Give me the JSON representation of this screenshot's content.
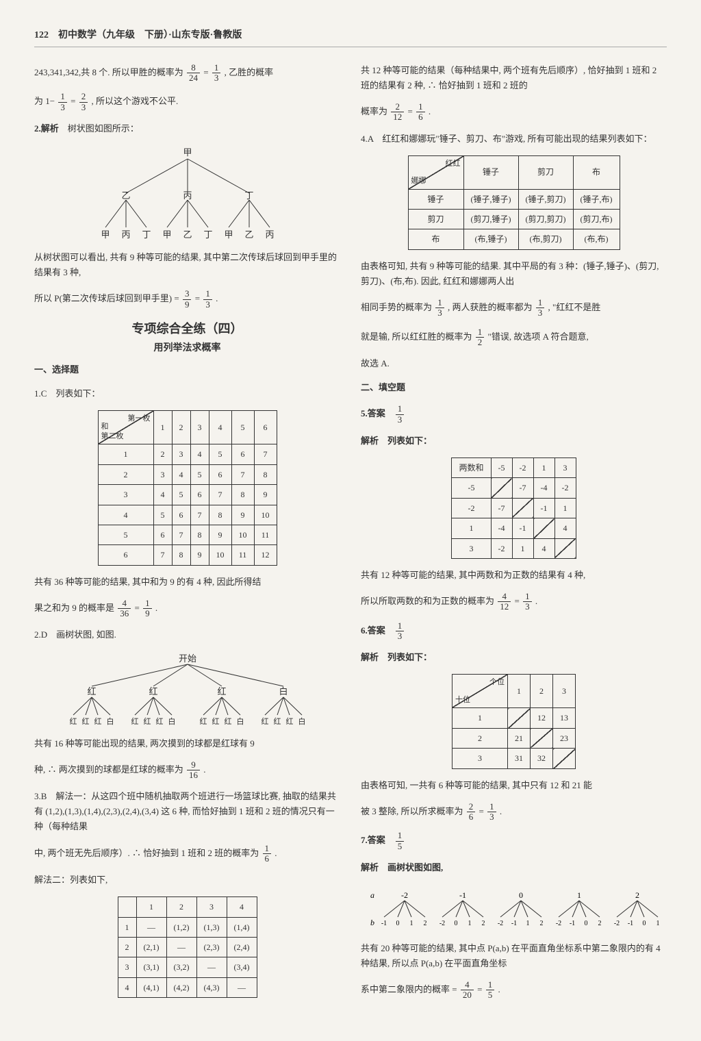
{
  "header": {
    "page_no": "122",
    "title": "初中数学（九年级　下册）·山东专版·鲁教版"
  },
  "left": {
    "p1_a": "243,341,342,共 8 个. 所以甲胜的概率为",
    "p1_frac1": {
      "n": "8",
      "d": "24"
    },
    "p1_eq": "=",
    "p1_frac2": {
      "n": "1",
      "d": "3"
    },
    "p1_b": ", 乙胜的概率",
    "p2_a": "为 1−",
    "p2_frac1": {
      "n": "1",
      "d": "3"
    },
    "p2_eq": "=",
    "p2_frac2": {
      "n": "2",
      "d": "3"
    },
    "p2_b": ", 所以这个游戏不公平.",
    "q2_label": "2.解析",
    "q2_text": "树状图如图所示：",
    "tree1": {
      "root": "甲",
      "mid": [
        "乙",
        "丙",
        "丁"
      ],
      "leaves": [
        [
          "甲",
          "丙",
          "丁"
        ],
        [
          "甲",
          "乙",
          "丁"
        ],
        [
          "甲",
          "乙",
          "丙"
        ]
      ],
      "colors": {
        "line": "#333"
      }
    },
    "tree1_after": "从树状图可以看出, 共有 9 种等可能的结果, 其中第二次传球后球回到甲手里的结果有 3 种,",
    "tree1_p": "所以 P(第二次传球后球回到甲手里) =",
    "tree1_f1": {
      "n": "3",
      "d": "9"
    },
    "tree1_eq": "=",
    "tree1_f2": {
      "n": "1",
      "d": "3"
    },
    "tree1_end": ".",
    "box_title": "专项综合全练（四）",
    "box_sub": "用列举法求概率",
    "sec1": "一、选择题",
    "q1c": "1.C　列表如下：",
    "table1": {
      "corner_top": "第一枚",
      "corner_mid": "和",
      "corner_bot": "第二枚",
      "cols": [
        "1",
        "2",
        "3",
        "4",
        "5",
        "6"
      ],
      "rows": [
        "1",
        "2",
        "3",
        "4",
        "5",
        "6"
      ],
      "cells": [
        [
          "2",
          "3",
          "4",
          "5",
          "6",
          "7"
        ],
        [
          "3",
          "4",
          "5",
          "6",
          "7",
          "8"
        ],
        [
          "4",
          "5",
          "6",
          "7",
          "8",
          "9"
        ],
        [
          "5",
          "6",
          "7",
          "8",
          "9",
          "10"
        ],
        [
          "6",
          "7",
          "8",
          "9",
          "10",
          "11"
        ],
        [
          "7",
          "8",
          "9",
          "10",
          "11",
          "12"
        ]
      ]
    },
    "t1_after_a": "共有 36 种等可能的结果, 其中和为 9 的有 4 种, 因此所得结",
    "t1_after_b": "果之和为 9 的概率是",
    "t1_f1": {
      "n": "4",
      "d": "36"
    },
    "t1_eq": "=",
    "t1_f2": {
      "n": "1",
      "d": "9"
    },
    "t1_end": ".",
    "q2d": "2.D　画树状图, 如图.",
    "tree2": {
      "root": "开始",
      "mid": [
        "红",
        "红",
        "红",
        "白"
      ],
      "leaves": [
        "红",
        "红",
        "红",
        "白"
      ],
      "colors": {
        "line": "#333"
      }
    },
    "tree2_after_a": "共有 16 种等可能出现的结果, 两次摸到的球都是红球有 9",
    "tree2_after_b": "种, ∴ 两次摸到的球都是红球的概率为",
    "tree2_f": {
      "n": "9",
      "d": "16"
    },
    "tree2_end": ".",
    "q3b": "3.B　解法一：从这四个班中随机抽取两个班进行一场篮球比赛, 抽取的结果共有 (1,2),(1,3),(1,4),(2,3),(2,4),(3,4) 这 6 种, 而恰好抽到 1 班和 2 班的情况只有一种（每种结果",
    "q3b_2a": "中, 两个班无先后顺序）. ∴ 恰好抽到 1 班和 2 班的概率为",
    "q3b_f": {
      "n": "1",
      "d": "6"
    },
    "q3b_end": ".",
    "q3b_3": "解法二：列表如下,",
    "table2": {
      "cols": [
        "",
        "1",
        "2",
        "3",
        "4"
      ],
      "rows": [
        [
          "1",
          "—",
          "(1,2)",
          "(1,3)",
          "(1,4)"
        ],
        [
          "2",
          "(2,1)",
          "—",
          "(2,3)",
          "(2,4)"
        ],
        [
          "3",
          "(3,1)",
          "(3,2)",
          "—",
          "(3,4)"
        ],
        [
          "4",
          "(4,1)",
          "(4,2)",
          "(4,3)",
          "—"
        ]
      ]
    }
  },
  "right": {
    "p1": "共 12 种等可能的结果（每种结果中, 两个班有先后顺序）, 恰好抽到 1 班和 2 班的结果有 2 种, ∴ 恰好抽到 1 班和 2 班的",
    "p1b": "概率为",
    "p1_f1": {
      "n": "2",
      "d": "12"
    },
    "p1_eq": "=",
    "p1_f2": {
      "n": "1",
      "d": "6"
    },
    "p1_end": ".",
    "q4a": "4.A　红红和娜娜玩\"锤子、剪刀、布\"游戏, 所有可能出现的结果列表如下：",
    "table3": {
      "corner_top": "红红",
      "corner_bot": "娜娜",
      "cols": [
        "锤子",
        "剪刀",
        "布"
      ],
      "rows": [
        "锤子",
        "剪刀",
        "布"
      ],
      "cells": [
        [
          "(锤子,锤子)",
          "(锤子,剪刀)",
          "(锤子,布)"
        ],
        [
          "(剪刀,锤子)",
          "(剪刀,剪刀)",
          "(剪刀,布)"
        ],
        [
          "(布,锤子)",
          "(布,剪刀)",
          "(布,布)"
        ]
      ]
    },
    "t3_a": "由表格可知, 共有 9 种等可能的结果. 其中平局的有 3 种：(锤子,锤子)、(剪刀,剪刀)、(布,布). 因此, 红红和娜娜两人出",
    "t3_b1": "相同手势的概率为",
    "t3_f1": {
      "n": "1",
      "d": "3"
    },
    "t3_b2": ", 两人获胜的概率都为",
    "t3_f2": {
      "n": "1",
      "d": "3"
    },
    "t3_b3": ", \"红红不是胜",
    "t3_c1": "就是输, 所以红红胜的概率为",
    "t3_f3": {
      "n": "1",
      "d": "2"
    },
    "t3_c2": "\"错误, 故选项 A 符合题意,",
    "t3_d": "故选 A.",
    "sec2": "二、填空题",
    "q5_label": "5.答案",
    "q5_f": {
      "n": "1",
      "d": "3"
    },
    "q5_jx": "解析　列表如下：",
    "table4": {
      "head": [
        "两数和",
        "-5",
        "-2",
        "1",
        "3"
      ],
      "rows": [
        [
          "-5",
          "",
          "-7",
          "-4",
          "-2"
        ],
        [
          "-2",
          "-7",
          "",
          "-1",
          "1"
        ],
        [
          "1",
          "-4",
          "-1",
          "",
          "4"
        ],
        [
          "3",
          "-2",
          "1",
          "4",
          ""
        ]
      ],
      "diag": [
        [
          1,
          1
        ],
        [
          2,
          2
        ],
        [
          3,
          3
        ],
        [
          4,
          4
        ]
      ]
    },
    "t4_a": "共有 12 种等可能的结果, 其中两数和为正数的结果有 4 种,",
    "t4_b": "所以所取两数的和为正数的概率为",
    "t4_f1": {
      "n": "4",
      "d": "12"
    },
    "t4_eq": "=",
    "t4_f2": {
      "n": "1",
      "d": "3"
    },
    "t4_end": ".",
    "q6_label": "6.答案",
    "q6_f": {
      "n": "1",
      "d": "3"
    },
    "q6_jx": "解析　列表如下：",
    "table5": {
      "corner_top": "个位",
      "corner_bot": "十位",
      "cols": [
        "1",
        "2",
        "3"
      ],
      "rows": [
        "1",
        "2",
        "3"
      ],
      "cells": [
        [
          "",
          "12",
          "13"
        ],
        [
          "21",
          "",
          "23"
        ],
        [
          "31",
          "32",
          ""
        ]
      ],
      "diag": [
        [
          0,
          0
        ],
        [
          1,
          1
        ],
        [
          2,
          2
        ]
      ]
    },
    "t5_a": "由表格可知, 一共有 6 种等可能的结果, 其中只有 12 和 21 能",
    "t5_b": "被 3 整除, 所以所求概率为",
    "t5_f1": {
      "n": "2",
      "d": "6"
    },
    "t5_eq": "=",
    "t5_f2": {
      "n": "1",
      "d": "3"
    },
    "t5_end": ".",
    "q7_label": "7.答案",
    "q7_f": {
      "n": "1",
      "d": "5"
    },
    "q7_jx": "解析　画树状图如图,",
    "tree3": {
      "a_label": "a",
      "b_label": "b",
      "a_vals": [
        "-2",
        "-1",
        "0",
        "1",
        "2"
      ],
      "b_vals": [
        "-1",
        "0",
        "1",
        "2",
        "-2",
        "0",
        "1",
        "2",
        "-2",
        "-1",
        "1",
        "2",
        "-2",
        "-1",
        "0",
        "2",
        "-2",
        "-1",
        "0",
        "1"
      ]
    },
    "t7_a": "共有 20 种等可能的结果, 其中点 P(a,b) 在平面直角坐标系中第二象限内的有 4 种结果, 所以点 P(a,b) 在平面直角坐标",
    "t7_b": "系中第二象限内的概率 =",
    "t7_f1": {
      "n": "4",
      "d": "20"
    },
    "t7_eq": "=",
    "t7_f2": {
      "n": "1",
      "d": "5"
    },
    "t7_end": "."
  }
}
